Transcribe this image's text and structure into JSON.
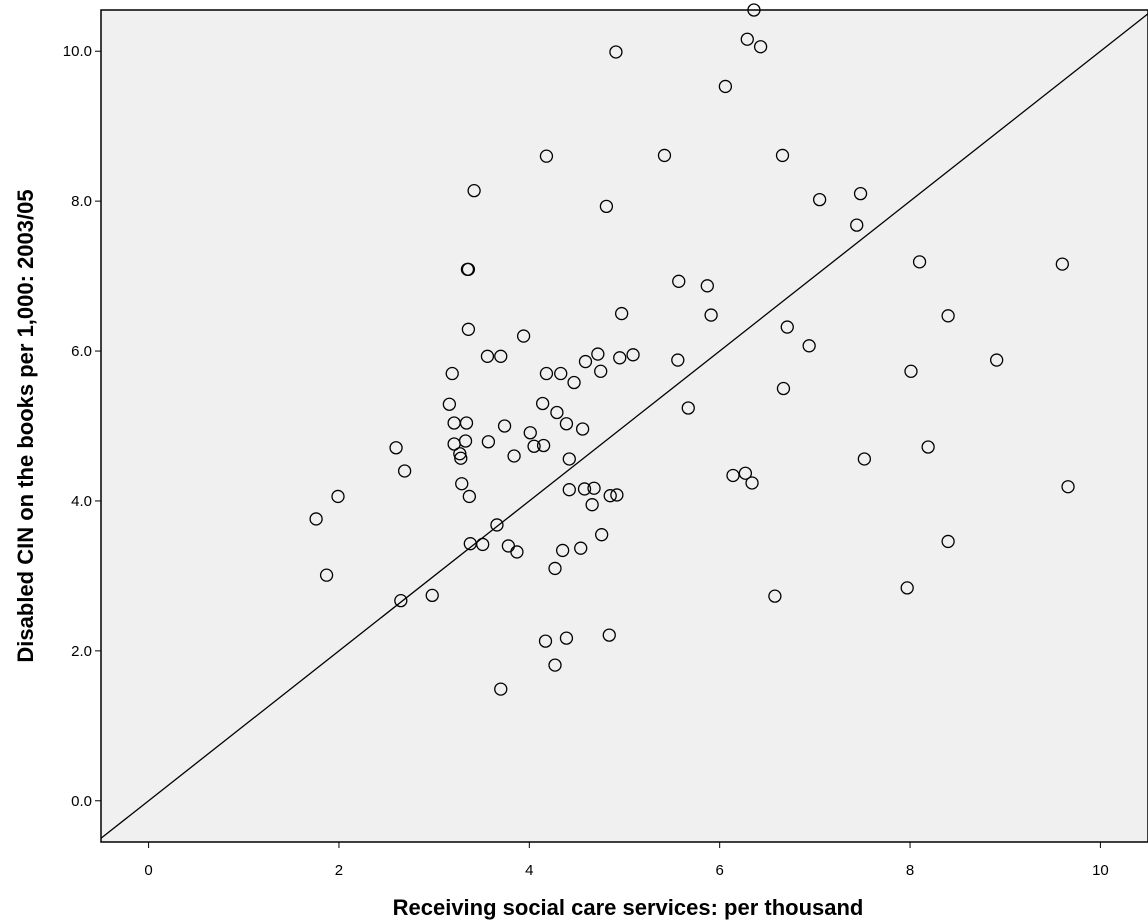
{
  "chart_data": {
    "type": "scatter",
    "title": "",
    "xlabel": "Receiving social care services: per thousand",
    "ylabel": "Disabled CIN on the books per 1,000: 2003/05",
    "xlim": [
      -0.5,
      10.5
    ],
    "ylim": [
      -0.55,
      10.55
    ],
    "x_ticks": [
      0,
      2,
      4,
      6,
      8,
      10
    ],
    "x_tick_labels": [
      "0",
      "2",
      "4",
      "6",
      "8",
      "10"
    ],
    "y_ticks": [
      0,
      2,
      4,
      6,
      8,
      10
    ],
    "y_tick_labels": [
      "0.0",
      "2.0",
      "4.0",
      "6.0",
      "8.0",
      "10.0"
    ],
    "grid": false,
    "background_color": "#f0f0f0",
    "marker": "open-circle",
    "reference_line": {
      "type": "y=x",
      "color": "#000000"
    },
    "series": [
      {
        "points": [
          [
            1.76,
            3.76
          ],
          [
            1.87,
            3.01
          ],
          [
            1.99,
            4.06
          ],
          [
            2.6,
            4.71
          ],
          [
            2.65,
            2.67
          ],
          [
            2.69,
            4.4
          ],
          [
            2.98,
            2.74
          ],
          [
            3.16,
            5.29
          ],
          [
            3.19,
            5.7
          ],
          [
            3.21,
            4.76
          ],
          [
            3.21,
            5.04
          ],
          [
            3.27,
            4.63
          ],
          [
            3.28,
            4.57
          ],
          [
            3.29,
            4.23
          ],
          [
            3.33,
            4.8
          ],
          [
            3.34,
            5.04
          ],
          [
            3.35,
            7.09
          ],
          [
            3.36,
            7.09
          ],
          [
            3.36,
            6.29
          ],
          [
            3.37,
            4.06
          ],
          [
            3.38,
            3.43
          ],
          [
            3.42,
            8.14
          ],
          [
            3.51,
            3.42
          ],
          [
            3.56,
            5.93
          ],
          [
            3.57,
            4.79
          ],
          [
            3.66,
            3.68
          ],
          [
            3.7,
            5.93
          ],
          [
            3.7,
            1.49
          ],
          [
            3.74,
            5.0
          ],
          [
            3.78,
            3.4
          ],
          [
            3.84,
            4.6
          ],
          [
            3.87,
            3.32
          ],
          [
            3.94,
            6.2
          ],
          [
            4.01,
            4.91
          ],
          [
            4.05,
            4.73
          ],
          [
            4.14,
            5.3
          ],
          [
            4.15,
            4.74
          ],
          [
            4.17,
            2.13
          ],
          [
            4.18,
            5.7
          ],
          [
            4.18,
            8.6
          ],
          [
            4.27,
            3.1
          ],
          [
            4.27,
            1.81
          ],
          [
            4.29,
            5.18
          ],
          [
            4.33,
            5.7
          ],
          [
            4.35,
            3.34
          ],
          [
            4.39,
            5.03
          ],
          [
            4.39,
            2.17
          ],
          [
            4.42,
            4.56
          ],
          [
            4.42,
            4.15
          ],
          [
            4.47,
            5.58
          ],
          [
            4.54,
            3.37
          ],
          [
            4.56,
            4.96
          ],
          [
            4.58,
            4.16
          ],
          [
            4.59,
            5.86
          ],
          [
            4.66,
            3.95
          ],
          [
            4.68,
            4.17
          ],
          [
            4.72,
            5.96
          ],
          [
            4.75,
            5.73
          ],
          [
            4.76,
            3.55
          ],
          [
            4.81,
            7.93
          ],
          [
            4.84,
            2.21
          ],
          [
            4.85,
            4.07
          ],
          [
            4.91,
            9.99
          ],
          [
            4.92,
            4.08
          ],
          [
            4.95,
            5.91
          ],
          [
            4.97,
            6.5
          ],
          [
            5.09,
            5.95
          ],
          [
            5.42,
            8.61
          ],
          [
            5.56,
            5.88
          ],
          [
            5.57,
            6.93
          ],
          [
            5.67,
            5.24
          ],
          [
            5.87,
            6.87
          ],
          [
            5.91,
            6.48
          ],
          [
            6.06,
            9.53
          ],
          [
            6.14,
            4.34
          ],
          [
            6.27,
            4.37
          ],
          [
            6.29,
            10.16
          ],
          [
            6.34,
            4.24
          ],
          [
            6.36,
            10.55
          ],
          [
            6.43,
            10.06
          ],
          [
            6.58,
            2.73
          ],
          [
            6.66,
            8.61
          ],
          [
            6.67,
            5.5
          ],
          [
            6.71,
            6.32
          ],
          [
            6.94,
            6.07
          ],
          [
            7.05,
            8.02
          ],
          [
            7.44,
            7.68
          ],
          [
            7.48,
            8.1
          ],
          [
            7.52,
            4.56
          ],
          [
            7.97,
            2.84
          ],
          [
            8.01,
            5.73
          ],
          [
            8.1,
            7.19
          ],
          [
            8.19,
            4.72
          ],
          [
            8.4,
            3.46
          ],
          [
            8.4,
            6.47
          ],
          [
            8.91,
            5.88
          ],
          [
            9.6,
            7.16
          ],
          [
            9.66,
            4.19
          ]
        ]
      }
    ]
  }
}
